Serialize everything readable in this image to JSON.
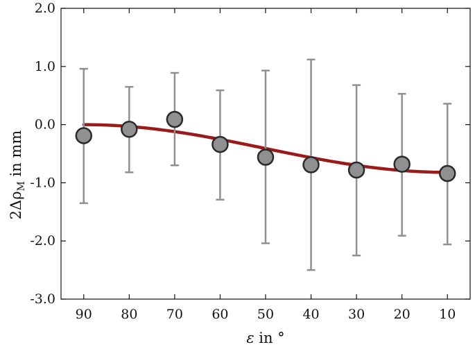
{
  "chart_data": {
    "type": "scatter",
    "title": "",
    "xlabel": {
      "symbol": "ε",
      "text": " in °"
    },
    "ylabel": {
      "prefix": "2Δρ",
      "subscript": "M",
      "text": " in mm"
    },
    "x_reversed": true,
    "xlim": [
      95,
      5
    ],
    "ylim": [
      -3.0,
      2.0
    ],
    "xticks": [
      90,
      80,
      70,
      60,
      50,
      40,
      30,
      20,
      10
    ],
    "xtick_labels": [
      "90",
      "80",
      "70",
      "60",
      "50",
      "40",
      "30",
      "20",
      "10"
    ],
    "yticks": [
      2.0,
      1.0,
      0.0,
      -1.0,
      -2.0,
      -3.0
    ],
    "ytick_labels": [
      "2.0",
      "1.0",
      "0.0",
      "-1.0",
      "-2.0",
      "-3.0"
    ],
    "grid": false,
    "series": [
      {
        "kind": "measurement",
        "x": [
          90,
          80,
          70,
          60,
          50,
          40,
          30,
          20,
          10
        ],
        "y": [
          -0.19,
          -0.08,
          0.09,
          -0.34,
          -0.56,
          -0.69,
          -0.78,
          -0.68,
          -0.84
        ],
        "yerr_low": [
          -1.35,
          -0.82,
          -0.7,
          -1.29,
          -2.04,
          -2.5,
          -2.25,
          -1.91,
          -2.06
        ],
        "yerr_high": [
          0.96,
          0.65,
          0.89,
          0.59,
          0.93,
          1.12,
          0.68,
          0.53,
          0.36
        ]
      },
      {
        "kind": "fit",
        "x_range": [
          90,
          10
        ],
        "y_start": 0.0,
        "y_end": -0.82
      }
    ],
    "colors": {
      "marker_fill": "#909090",
      "marker_edge": "#2a2a2a",
      "errorbar": "#909090",
      "fit_line": "#9b1b1b",
      "axis": "#111111"
    }
  }
}
